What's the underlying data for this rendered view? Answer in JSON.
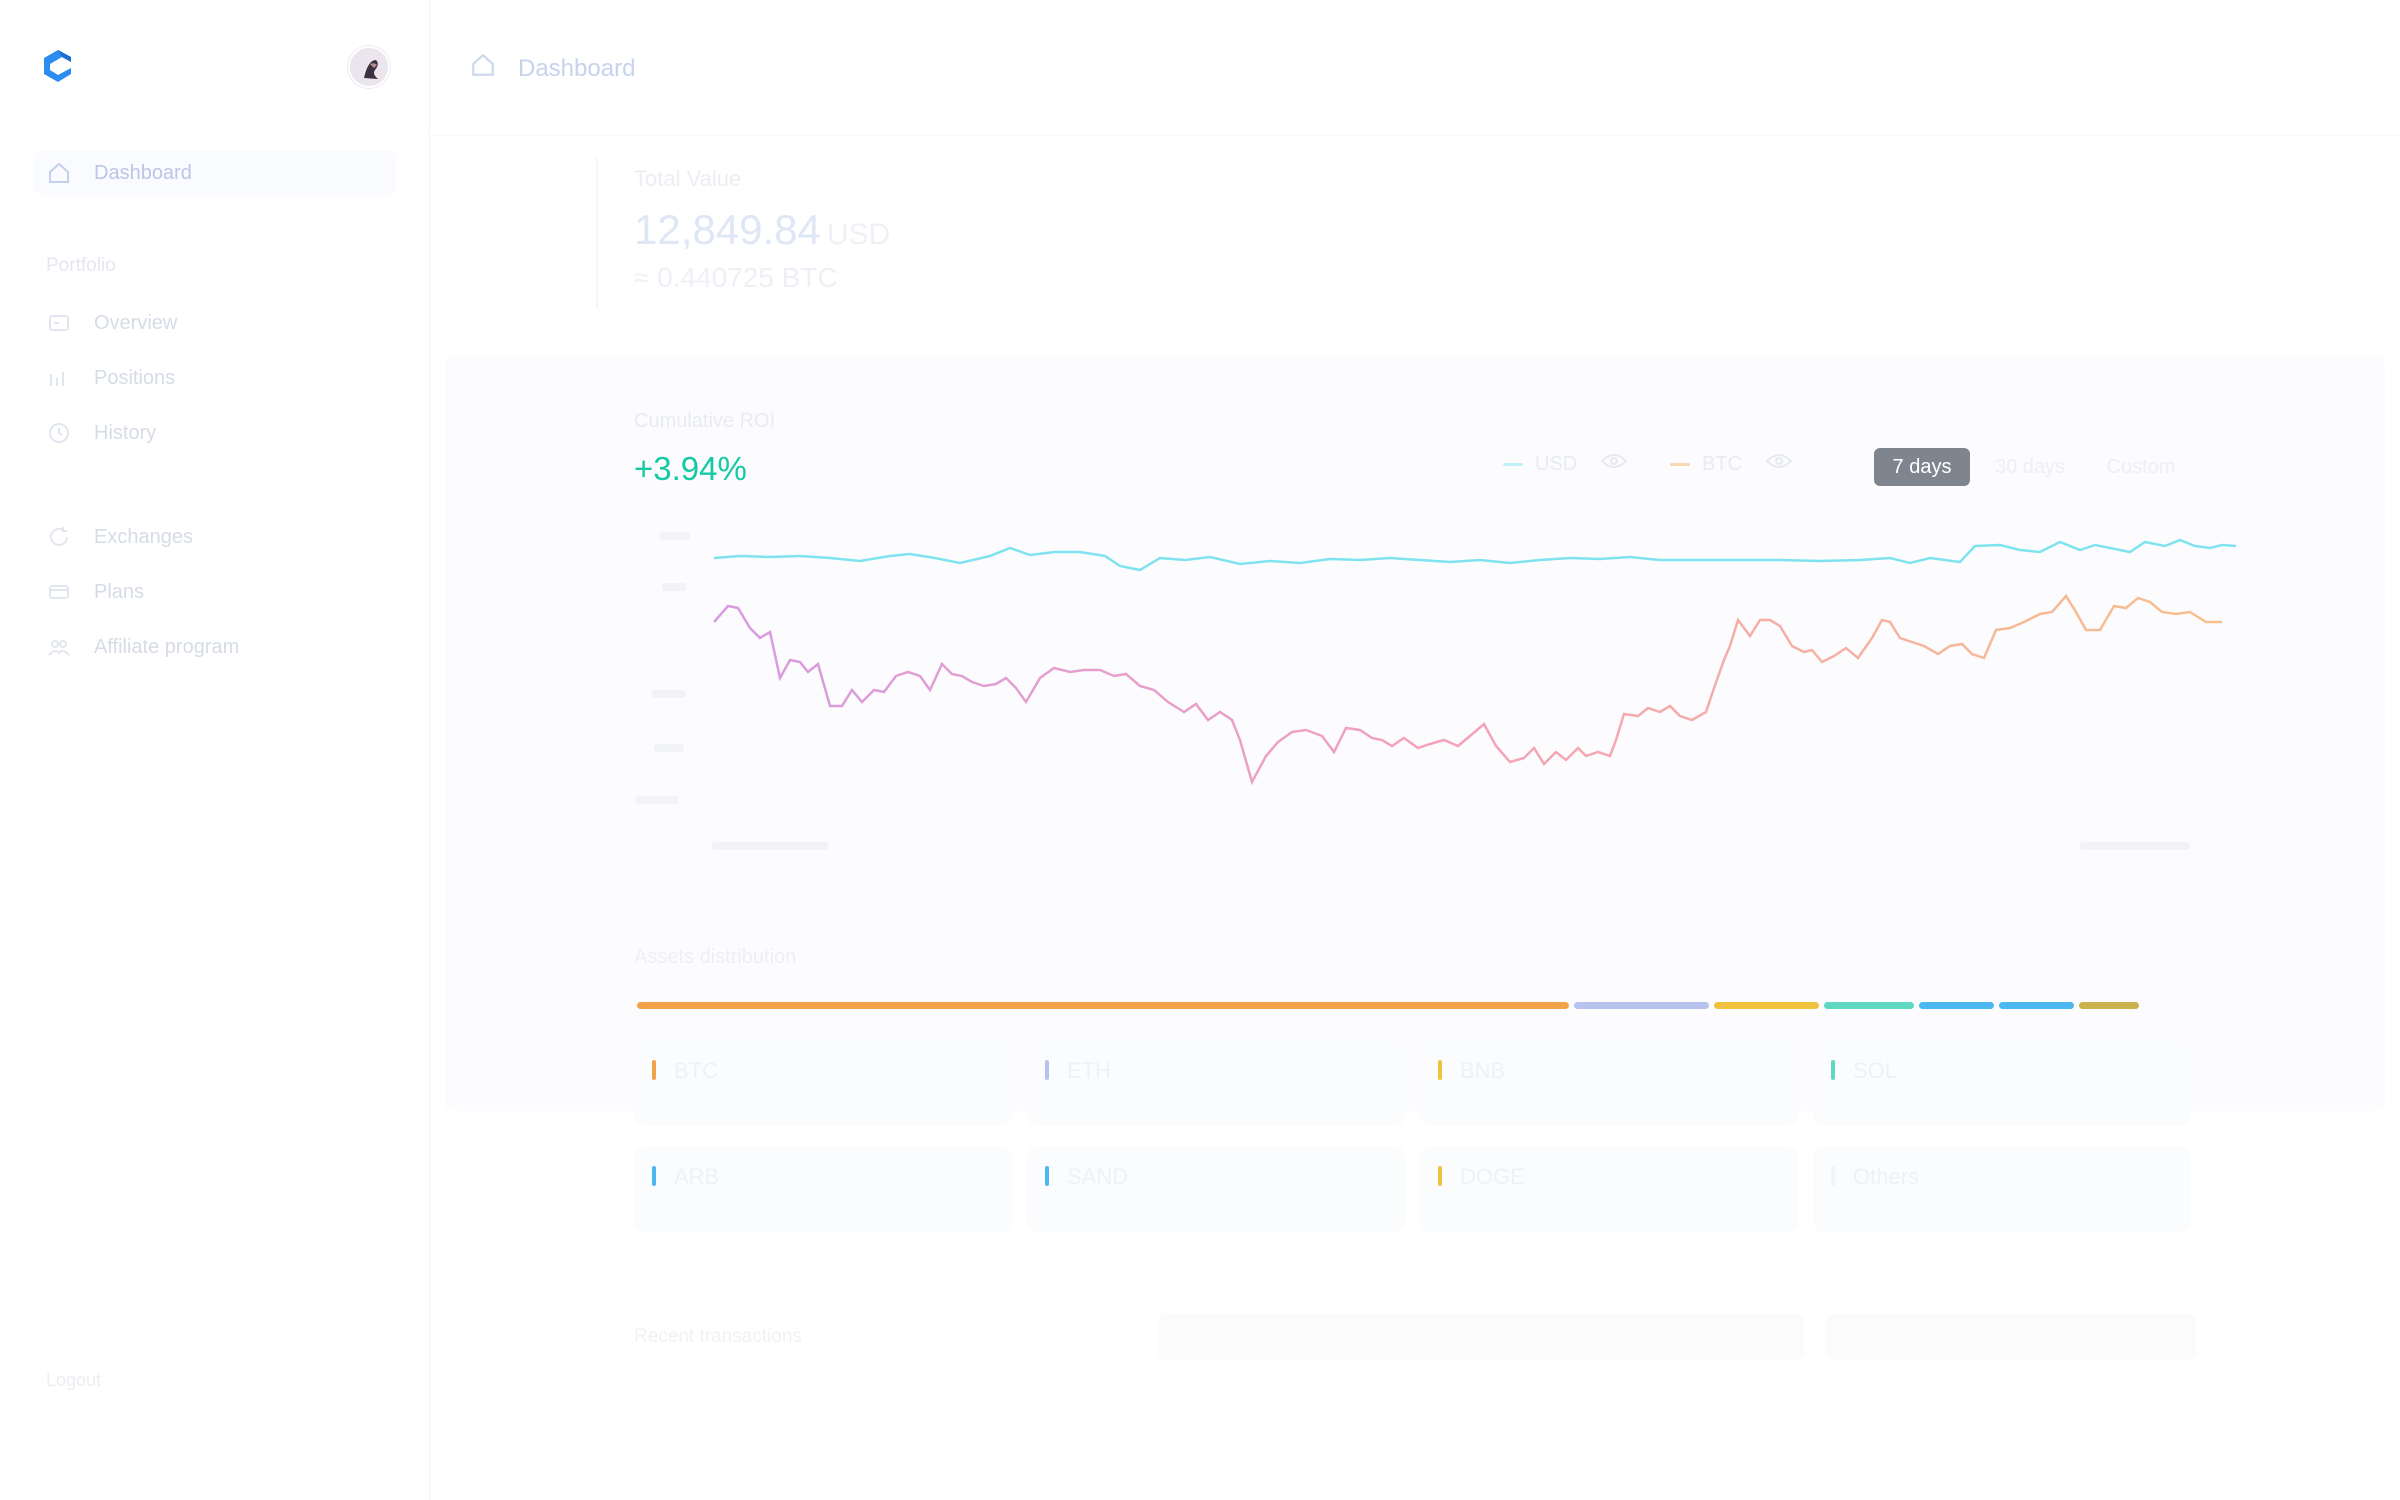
{
  "sidebar": {
    "nav": [
      {
        "label": "Dashboard",
        "icon": "home-icon",
        "active": true
      },
      {
        "label": "Overview",
        "icon": "overview-icon"
      },
      {
        "label": "Positions",
        "icon": "positions-icon"
      },
      {
        "label": "History",
        "icon": "history-icon"
      },
      {
        "label": "Exchanges",
        "icon": "exchanges-icon"
      },
      {
        "label": "Plans",
        "icon": "plans-icon"
      },
      {
        "label": "Affiliate program",
        "icon": "affiliate-icon"
      }
    ],
    "section_label": "Portfolio",
    "footer_label": "Logout"
  },
  "header": {
    "title": "Dashboard"
  },
  "total": {
    "label": "Total Value",
    "value": "12,849.84",
    "unit": "USD",
    "btc": "≈ 0.440725 BTC"
  },
  "roi": {
    "label": "Cumulative ROI",
    "value": "+3.94%",
    "value_color": "#14c9a5",
    "legend": [
      {
        "label": "USD",
        "color": "#7fe3ef"
      },
      {
        "label": "BTC",
        "color": "#f7c68f"
      }
    ],
    "ranges": [
      {
        "label": "7 days",
        "active": true
      },
      {
        "label": "30 days",
        "active": false
      },
      {
        "label": "Custom",
        "active": false
      }
    ]
  },
  "assets": {
    "label": "Assets distribution",
    "bar": [
      {
        "share": 0.62,
        "color": "#f4a24a"
      },
      {
        "share": 0.09,
        "color": "#b8c2ef"
      },
      {
        "share": 0.07,
        "color": "#f1c23e"
      },
      {
        "share": 0.06,
        "color": "#5fd8c2"
      },
      {
        "share": 0.05,
        "color": "#4cb7f0"
      },
      {
        "share": 0.05,
        "color": "#4cb7f0"
      },
      {
        "share": 0.04,
        "color": "#c9b14e"
      }
    ],
    "cards": [
      {
        "name": "BTC",
        "color": "#f4a24a"
      },
      {
        "name": "ETH",
        "color": "#b8c2ef"
      },
      {
        "name": "BNB",
        "color": "#f1c23e"
      },
      {
        "name": "SOL",
        "color": "#5fd8c2"
      },
      {
        "name": "ARB",
        "color": "#4cb7f0"
      },
      {
        "name": "SAND",
        "color": "#4cb7f0"
      },
      {
        "name": "DOGE",
        "color": "#f1c23e"
      },
      {
        "name": "Others",
        "color": "#f0f2f5"
      }
    ]
  },
  "recent": {
    "label": "Recent transactions"
  }
}
